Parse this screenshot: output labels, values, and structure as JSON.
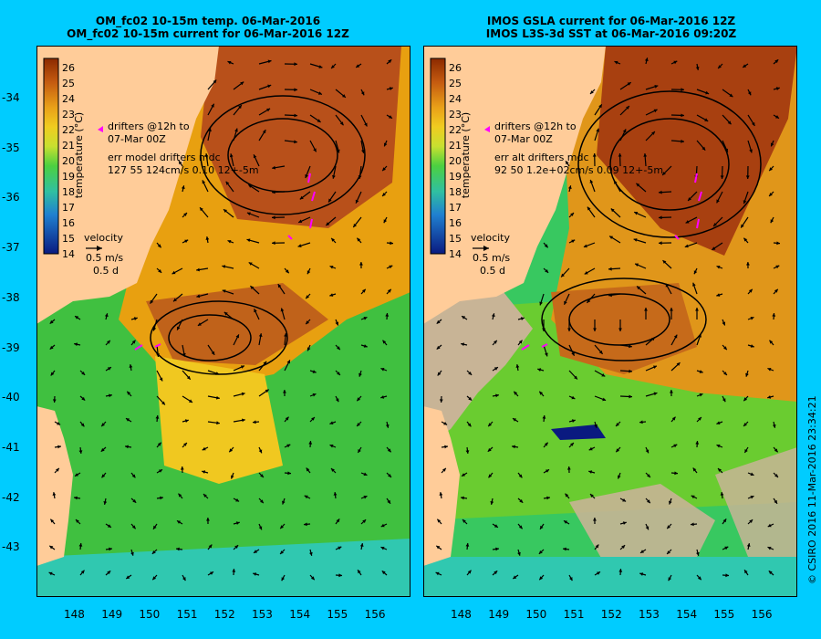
{
  "colors": {
    "background": "#00ccff",
    "land": "#ffcc99",
    "missing": "#c8b496",
    "vector": "#000000",
    "drifter": "#ff00ff"
  },
  "axes": {
    "y_ticks": [
      "-34",
      "-35",
      "-36",
      "-37",
      "-38",
      "-39",
      "-40",
      "-41",
      "-42",
      "-43"
    ],
    "x_ticks": [
      "148",
      "149",
      "150",
      "151",
      "152",
      "153",
      "154",
      "155",
      "156"
    ]
  },
  "colorbar": {
    "label": "temperature (°C)",
    "ticks": [
      "26",
      "25",
      "24",
      "23",
      "22",
      "21",
      "20",
      "19",
      "18",
      "17",
      "16",
      "15",
      "14"
    ]
  },
  "left_panel": {
    "title_line1": "OM_fc02 10-15m temp. 06-Mar-2016",
    "title_line2": "OM_fc02 10-15m current for 06-Mar-2016 12Z",
    "drifter_legend_1": "drifters @12h to",
    "drifter_legend_2": "07-Mar 00Z",
    "err_line_1": "err model drifters mdc",
    "err_line_2": "127 55 124cm/s 0.10 12+-5m"
  },
  "right_panel": {
    "title_line1": "IMOS GSLA current for 06-Mar-2016 12Z",
    "title_line2": "IMOS L3S-3d SST at 06-Mar-2016 09:20Z",
    "drifter_legend_1": "drifters @12h to",
    "drifter_legend_2": "07-Mar 00Z",
    "err_line_1": "err alt drifters mdc",
    "err_line_2": "92 50 1.2e+02cm/s 0.09 12+-5m"
  },
  "velocity_legend": {
    "label": "velocity",
    "speed": "0.5 m/s",
    "duration": "0.5 d"
  },
  "copyright": "© CSIRO 2016   11-Mar-2016 23:34:21"
}
